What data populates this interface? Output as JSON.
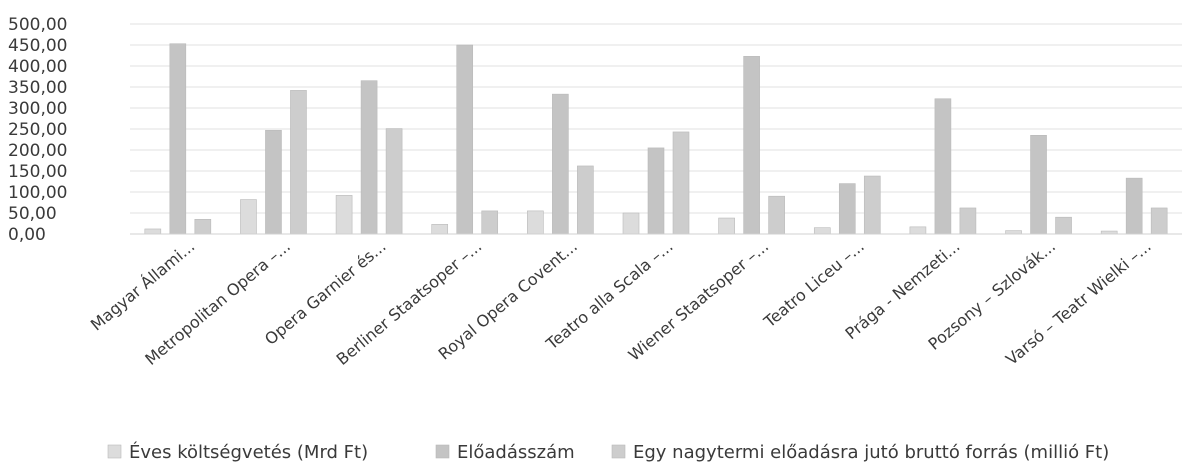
{
  "chart_data": {
    "type": "bar",
    "categories": [
      "Magyar Állami...",
      "Metropolitan Opera –...",
      "Opera Garnier és...",
      "Berliner Staatsoper –...",
      "Royal Opera Covent...",
      "Teatro alla Scala –...",
      "Wiener Staatsoper –...",
      "Teatro Liceu –...",
      "Prága - Nemzeti...",
      "Pozsony – Szlovák...",
      "Varsó – Teatr Wielki –..."
    ],
    "series": [
      {
        "name": "Éves költségvetés (Mrd Ft)",
        "color": "#dcdcdc",
        "values": [
          12,
          82,
          92,
          23,
          55,
          50,
          38,
          15,
          17,
          8,
          7
        ]
      },
      {
        "name": "Előadásszám",
        "color": "#c4c4c4",
        "values": [
          453,
          247,
          365,
          450,
          333,
          205,
          423,
          120,
          322,
          235,
          133
        ]
      },
      {
        "name": "Egy nagytermi előadásra jutó bruttó forrás (millió Ft)",
        "color": "#cdcdcd",
        "values": [
          35,
          342,
          251,
          55,
          162,
          243,
          90,
          138,
          62,
          40,
          62
        ]
      }
    ],
    "yticks": [
      "0,00",
      "50,00",
      "100,00",
      "150,00",
      "200,00",
      "250,00",
      "300,00",
      "350,00",
      "400,00",
      "450,00",
      "500,00"
    ],
    "ylim": [
      0,
      500
    ],
    "grid": true,
    "legend_position": "bottom"
  }
}
